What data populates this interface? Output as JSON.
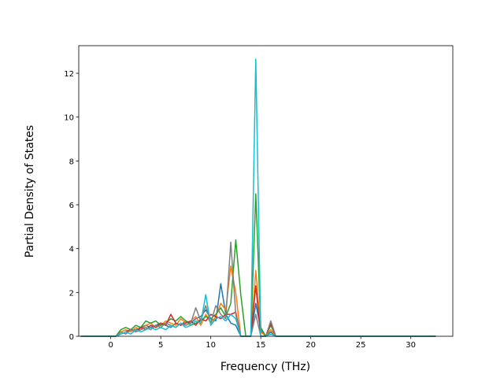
{
  "chart_data": {
    "type": "line",
    "x_label": "Frequency (THz)",
    "y_label": "Partial Density of States",
    "x": [
      -3,
      0.5,
      1,
      1.5,
      2,
      2.5,
      3,
      3.5,
      4,
      4.5,
      5,
      5.5,
      6,
      6.5,
      7,
      7.5,
      8,
      8.5,
      9,
      9.5,
      10,
      10.5,
      11,
      11.5,
      12,
      12.5,
      13,
      13.5,
      14,
      14.5,
      15,
      15.5,
      16,
      16.5,
      32.5
    ],
    "series": [
      {
        "color": "#1f77b4",
        "values": [
          0,
          0,
          0.1,
          0.2,
          0.3,
          0.3,
          0.4,
          0.5,
          0.4,
          0.5,
          0.6,
          0.5,
          0.4,
          0.6,
          0.5,
          0.7,
          0.6,
          0.8,
          0.9,
          1.2,
          0.8,
          0.7,
          2.4,
          1.0,
          0.6,
          0.5,
          0,
          0,
          0,
          1.5,
          0.3,
          0,
          0.2,
          0,
          0
        ]
      },
      {
        "color": "#ff7f0e",
        "values": [
          0,
          0,
          0.2,
          0.3,
          0.2,
          0.4,
          0.3,
          0.5,
          0.6,
          0.4,
          0.5,
          0.7,
          0.6,
          0.5,
          0.8,
          0.6,
          0.7,
          0.9,
          0.5,
          1.0,
          0.6,
          0.9,
          1.5,
          1.2,
          3.2,
          2.0,
          0,
          0,
          0,
          3.0,
          0.2,
          0,
          0.3,
          0,
          0
        ]
      },
      {
        "color": "#2ca02c",
        "values": [
          0,
          0,
          0.3,
          0.4,
          0.3,
          0.5,
          0.4,
          0.7,
          0.6,
          0.7,
          0.5,
          0.6,
          0.8,
          0.7,
          0.9,
          0.7,
          0.5,
          0.6,
          0.7,
          0.9,
          0.8,
          1.0,
          1.3,
          0.9,
          1.5,
          4.4,
          1.9,
          0,
          0,
          6.5,
          0.4,
          0,
          0.5,
          0,
          0
        ]
      },
      {
        "color": "#d62728",
        "values": [
          0,
          0,
          0.1,
          0.2,
          0.3,
          0.2,
          0.4,
          0.3,
          0.5,
          0.4,
          0.6,
          0.5,
          1.0,
          0.6,
          0.5,
          0.6,
          0.7,
          0.5,
          0.8,
          0.7,
          1.0,
          0.9,
          0.8,
          1.0,
          1.0,
          1.1,
          0,
          0,
          0,
          2.3,
          0,
          0,
          0.6,
          0,
          0
        ]
      },
      {
        "color": "#7f7f7f",
        "values": [
          0,
          0,
          0.2,
          0.1,
          0.3,
          0.2,
          0.3,
          0.4,
          0.3,
          0.5,
          0.4,
          0.6,
          0.5,
          0.4,
          0.6,
          0.5,
          0.6,
          1.3,
          0.7,
          1.4,
          0.6,
          1.4,
          1.0,
          0.8,
          4.3,
          1.0,
          0,
          0,
          0,
          1.0,
          0,
          0,
          0.7,
          0,
          0
        ]
      },
      {
        "color": "#17becf",
        "values": [
          0,
          0,
          0.1,
          0.2,
          0.1,
          0.3,
          0.2,
          0.3,
          0.4,
          0.3,
          0.4,
          0.3,
          0.5,
          0.4,
          0.6,
          0.4,
          0.5,
          0.7,
          0.6,
          1.9,
          0.5,
          0.8,
          0.9,
          0.7,
          1.0,
          0.8,
          0,
          0,
          0,
          12.65,
          0,
          0,
          0.1,
          0,
          0
        ]
      }
    ],
    "xlim": [
      -3.2,
      34.2
    ],
    "ylim": [
      0,
      13.26
    ],
    "xticks": [
      0,
      5,
      10,
      15,
      20,
      25,
      30
    ],
    "yticks": [
      0,
      2,
      4,
      6,
      8,
      10,
      12
    ]
  }
}
